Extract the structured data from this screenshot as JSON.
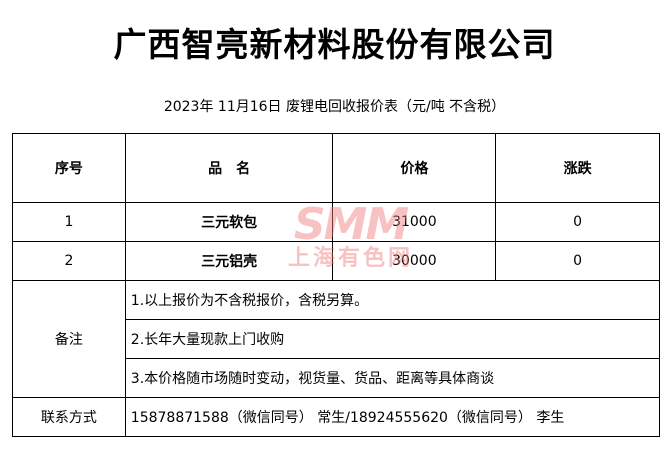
{
  "title": "广西智亮新材料股份有限公司",
  "subtitle": "2023年 11月16日 废锂电回收报价表（元/吨  不含税）",
  "headers": [
    "序号",
    "品　名",
    "价格",
    "涨跌"
  ],
  "rows": [
    {
      "no": "1",
      "name": "三元软包",
      "price": "31000",
      "change": "0"
    },
    {
      "no": "2",
      "name": "三元铝壳",
      "price": "30000",
      "change": "0"
    }
  ],
  "notes_label": "备注",
  "notes": [
    "1.以上报价为不含税报价，含税另算。",
    "2.长年大量现款上门收购",
    "3.本价格随市场随时变动，视货量、货品、距离等具体商谈"
  ],
  "contact_label": "联系方式",
  "contact": "15878871588（微信同号） 常生/18924555620（微信同号）  李生",
  "watermark": {
    "logo": "SMM",
    "text": "上海有色网",
    "color": "#f07878"
  }
}
